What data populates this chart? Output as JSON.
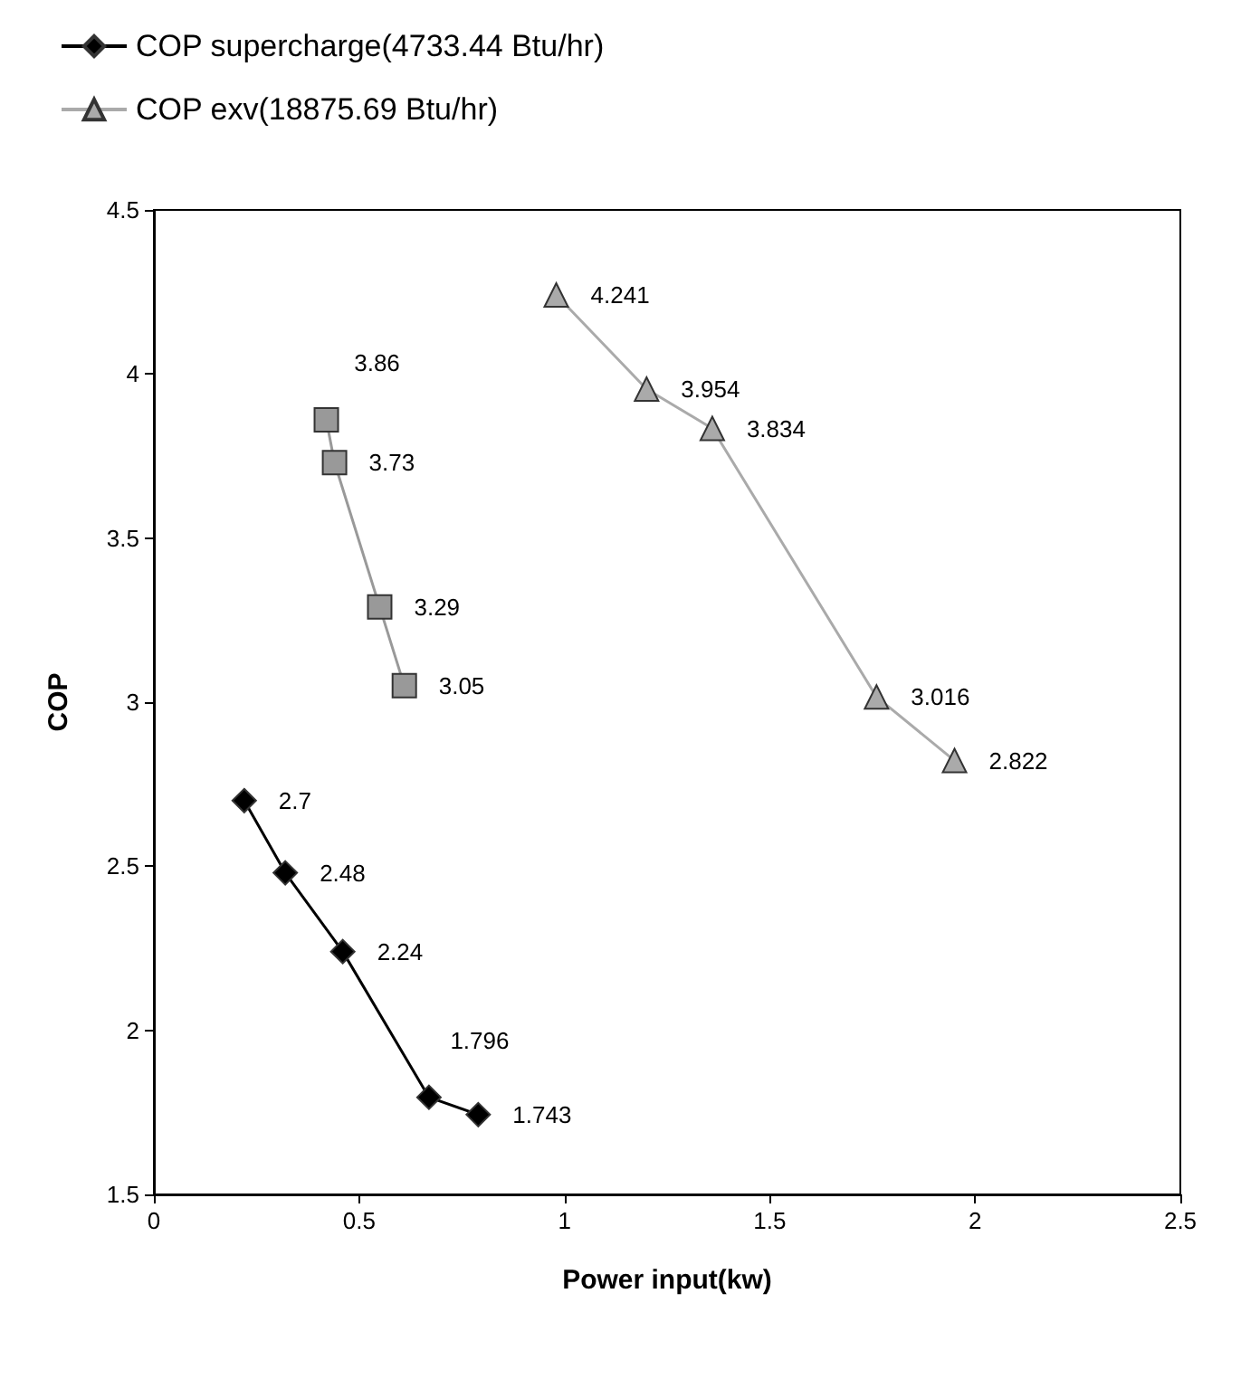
{
  "chart_data": {
    "type": "line",
    "xlabel": "Power input(kw)",
    "ylabel": "COP",
    "xlim": [
      0,
      2.5
    ],
    "xticks": [
      0,
      0.5,
      1,
      1.5,
      2,
      2.5
    ],
    "ylim": [
      1.5,
      4.5
    ],
    "yticks": [
      1.5,
      2,
      2.5,
      3,
      3.5,
      4,
      4.5
    ],
    "grid": false,
    "legend": "top left",
    "data_labels": true,
    "series": [
      {
        "name": "COP supercharge(4733.44 Btu/hr)",
        "color": "#000000",
        "marker": "diamond",
        "x": [
          0.22,
          0.32,
          0.46,
          0.67,
          0.79
        ],
        "values": [
          2.7,
          2.48,
          2.24,
          1.796,
          1.743
        ]
      },
      {
        "color": "#999999",
        "marker": "square",
        "x": [
          0.42,
          0.44,
          0.55,
          0.61
        ],
        "values": [
          3.86,
          3.73,
          3.29,
          3.05
        ]
      },
      {
        "name": "COP exv(18875.69 Btu/hr)",
        "color": "#aaaaaa",
        "marker": "triangle",
        "x": [
          0.98,
          1.2,
          1.36,
          1.76,
          1.95
        ],
        "values": [
          4.241,
          3.954,
          3.834,
          3.016,
          2.822
        ]
      }
    ]
  }
}
